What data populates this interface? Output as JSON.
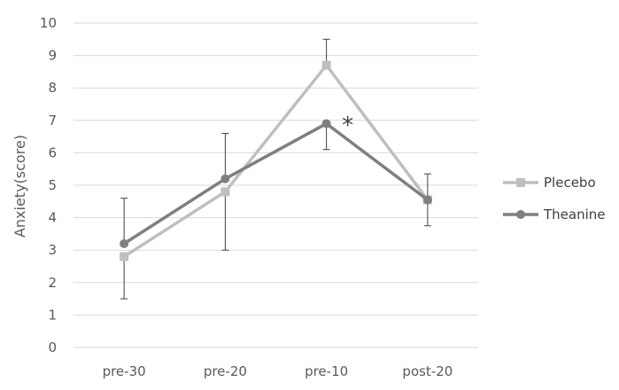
{
  "chart_data": {
    "type": "line",
    "title": "",
    "xlabel": "",
    "ylabel": "Anxiety(score)",
    "ylim": [
      0,
      10
    ],
    "yticks": [
      0,
      1,
      2,
      3,
      4,
      5,
      6,
      7,
      8,
      9,
      10
    ],
    "categories": [
      "pre-30",
      "pre-20",
      "pre-10",
      "post-20"
    ],
    "grid": true,
    "legend_position": "right",
    "series": [
      {
        "name": "Plecebo",
        "marker": "square",
        "color": "#bfbfbf",
        "values": [
          2.8,
          4.8,
          8.7,
          4.55
        ],
        "error_upper": [
          null,
          null,
          9.5,
          null
        ],
        "error_lower": [
          1.5,
          3.0,
          null,
          null
        ]
      },
      {
        "name": "Theanine",
        "marker": "circle",
        "color": "#7f7f7f",
        "values": [
          3.2,
          5.2,
          6.9,
          4.55
        ],
        "error_upper": [
          4.6,
          6.6,
          null,
          5.35
        ],
        "error_lower": [
          null,
          null,
          6.1,
          3.75
        ]
      }
    ],
    "annotations": [
      {
        "text": "*",
        "category": "pre-10",
        "y": 7.0
      }
    ]
  }
}
